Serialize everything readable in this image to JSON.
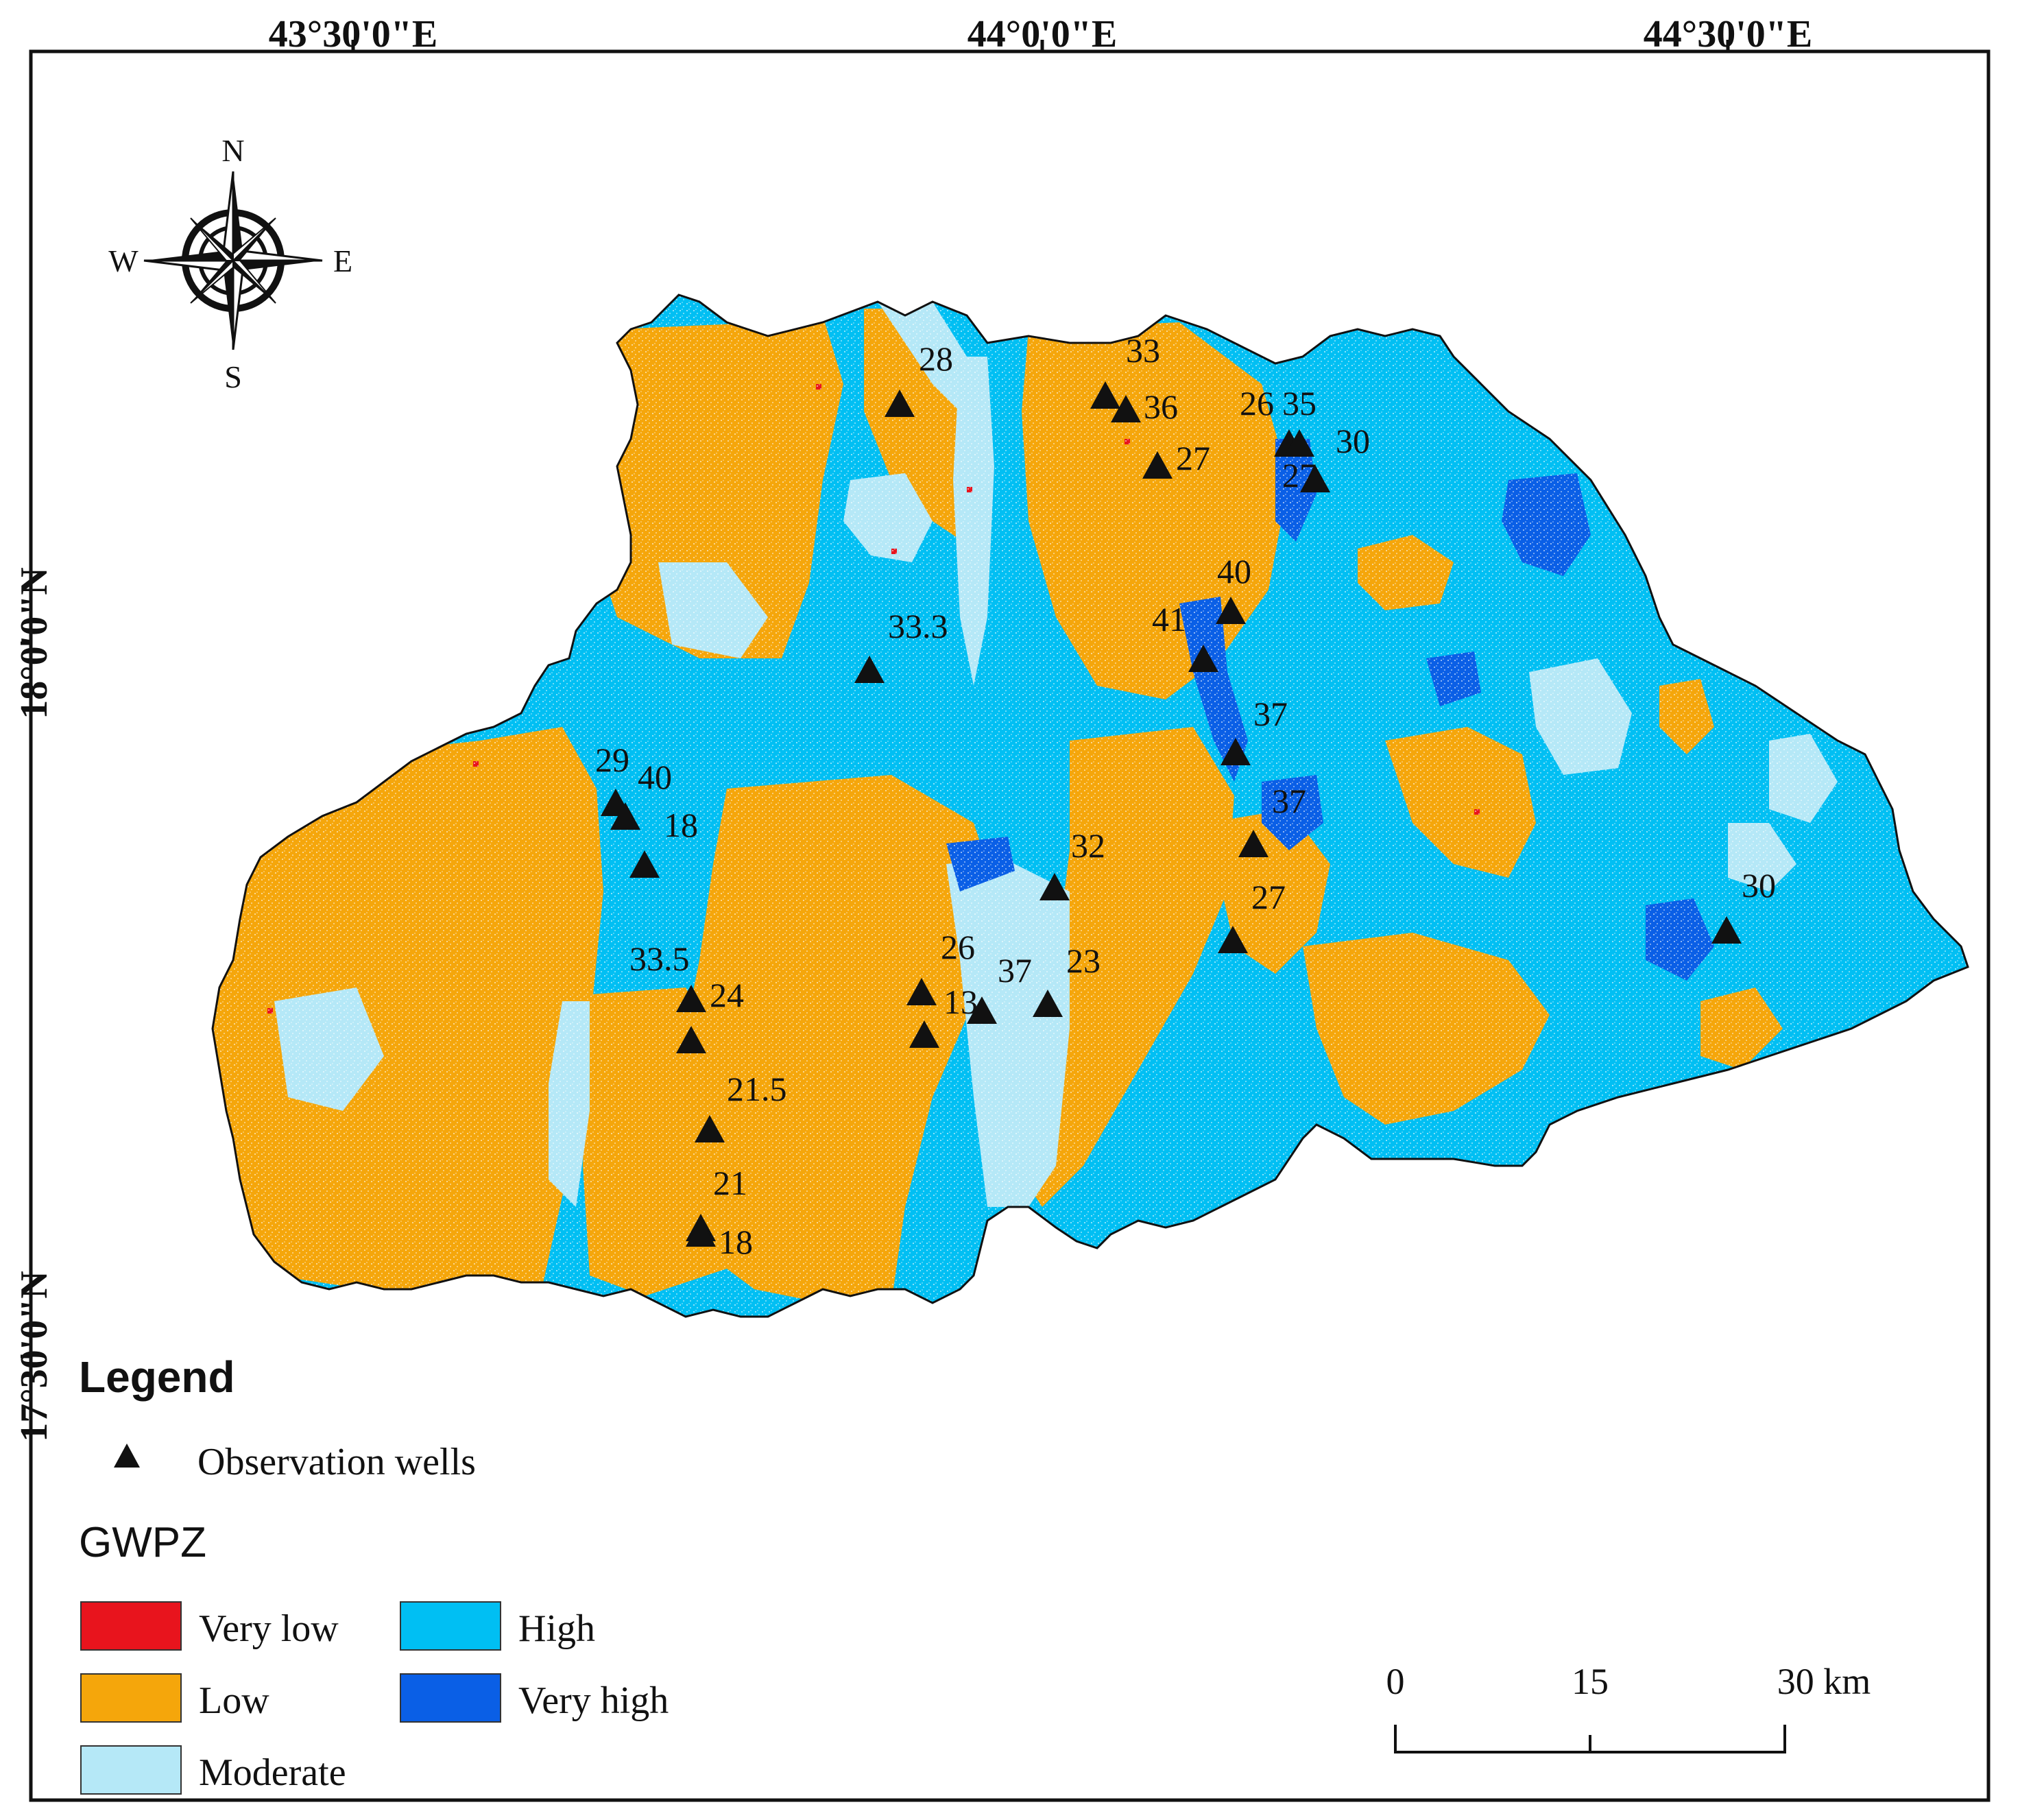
{
  "coordinates": {
    "top": [
      "43°30'0\"E",
      "44°0'0\"E",
      "44°30'0\"E"
    ],
    "left": [
      "18°0'0\"N",
      "17°30'0\"N"
    ]
  },
  "compass": {
    "n": "N",
    "s": "S",
    "e": "E",
    "w": "W"
  },
  "legend": {
    "title": "Legend",
    "wells_label": "Observation wells",
    "gwpz_title": "GWPZ",
    "classes": [
      {
        "label": "Very low",
        "color": "#e8141d"
      },
      {
        "label": "Low",
        "color": "#f5a60b"
      },
      {
        "label": "Moderate",
        "color": "#b5e8f7"
      },
      {
        "label": "High",
        "color": "#00bff3"
      },
      {
        "label": "Very high",
        "color": "#0a5fe6"
      }
    ]
  },
  "scale_bar": {
    "labels": [
      "0",
      "15",
      "30 km"
    ]
  },
  "wells": [
    {
      "label": "28"
    },
    {
      "label": "33"
    },
    {
      "label": "36"
    },
    {
      "label": "26"
    },
    {
      "label": "35"
    },
    {
      "label": "30"
    },
    {
      "label": "27"
    },
    {
      "label": "27"
    },
    {
      "label": "40"
    },
    {
      "label": "41"
    },
    {
      "label": "33.3"
    },
    {
      "label": "37"
    },
    {
      "label": "37"
    },
    {
      "label": "29"
    },
    {
      "label": "40"
    },
    {
      "label": "18"
    },
    {
      "label": "32"
    },
    {
      "label": "27"
    },
    {
      "label": "30"
    },
    {
      "label": "33.5"
    },
    {
      "label": "24"
    },
    {
      "label": "26"
    },
    {
      "label": "13"
    },
    {
      "label": "37"
    },
    {
      "label": "23"
    },
    {
      "label": "21.5"
    },
    {
      "label": "21"
    },
    {
      "label": "18"
    }
  ]
}
